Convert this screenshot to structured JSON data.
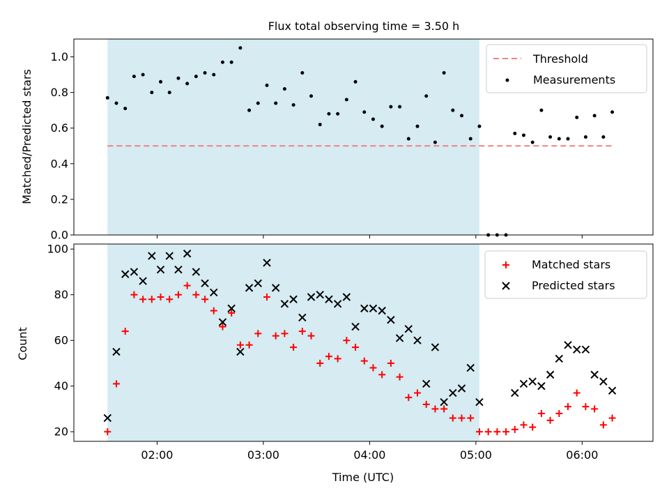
{
  "title": "Flux total observing time = 3.50 h",
  "colors": {
    "threshold": "#f08080",
    "measurement": "#000000",
    "matched": "#ff0000",
    "predicted": "#000000",
    "shade": "#add8e6"
  },
  "chart_data": [
    {
      "type": "scatter",
      "panel": "top",
      "ylabel": "Matched/Predicted stars",
      "ylim": [
        0.0,
        1.1
      ],
      "xlim": [
        "01:13",
        "06:40"
      ],
      "yticks": [
        0.0,
        0.2,
        0.4,
        0.6,
        0.8,
        1.0
      ],
      "ytick_labels": [
        "0.0",
        "0.2",
        "0.4",
        "0.6",
        "0.8",
        "1.0"
      ],
      "shaded_span": [
        "01:32",
        "05:02"
      ],
      "legend_position": "top-right",
      "legend": [
        "Threshold",
        "Measurements"
      ],
      "threshold": {
        "name": "Threshold",
        "value": 0.5,
        "x": [
          "01:32",
          "06:17"
        ],
        "style": "dashed"
      },
      "series": [
        {
          "name": "Measurements",
          "x": [
            "01:32",
            "01:37",
            "01:42",
            "01:47",
            "01:52",
            "01:57",
            "02:02",
            "02:07",
            "02:12",
            "02:17",
            "02:22",
            "02:27",
            "02:32",
            "02:37",
            "02:42",
            "02:47",
            "02:52",
            "02:57",
            "03:02",
            "03:07",
            "03:12",
            "03:17",
            "03:22",
            "03:27",
            "03:32",
            "03:37",
            "03:42",
            "03:47",
            "03:52",
            "03:57",
            "04:02",
            "04:07",
            "04:12",
            "04:17",
            "04:22",
            "04:27",
            "04:32",
            "04:37",
            "04:42",
            "04:47",
            "04:52",
            "04:57",
            "05:02",
            "05:07",
            "05:12",
            "05:17",
            "05:22",
            "05:27",
            "05:32",
            "05:37",
            "05:42",
            "05:47",
            "05:52",
            "05:57",
            "06:02",
            "06:07",
            "06:12",
            "06:17"
          ],
          "y": [
            0.77,
            0.74,
            0.71,
            0.89,
            0.9,
            0.8,
            0.86,
            0.8,
            0.88,
            0.85,
            0.89,
            0.91,
            0.9,
            0.97,
            0.97,
            1.05,
            0.7,
            0.74,
            0.84,
            0.74,
            0.82,
            0.73,
            0.91,
            0.78,
            0.62,
            0.68,
            0.68,
            0.76,
            0.86,
            0.69,
            0.65,
            0.61,
            0.72,
            0.72,
            0.54,
            0.61,
            0.78,
            0.52,
            0.91,
            0.7,
            0.67,
            0.54,
            0.61,
            0.0,
            0.0,
            0.0,
            0.57,
            0.56,
            0.52,
            0.7,
            0.55,
            0.54,
            0.54,
            0.66,
            0.55,
            0.67,
            0.55,
            0.69
          ]
        }
      ]
    },
    {
      "type": "scatter",
      "panel": "bottom",
      "xlabel": "Time (UTC)",
      "ylabel": "Count",
      "ylim": [
        15.8,
        102.2
      ],
      "xlim": [
        "01:13",
        "06:40"
      ],
      "xticks": [
        "02:00",
        "03:00",
        "04:00",
        "05:00",
        "06:00"
      ],
      "yticks": [
        20,
        40,
        60,
        80,
        100
      ],
      "ytick_labels": [
        "20",
        "40",
        "60",
        "80",
        "100"
      ],
      "shaded_span": [
        "01:32",
        "05:02"
      ],
      "legend_position": "top-right",
      "legend": [
        "Matched stars",
        "Predicted stars"
      ],
      "x": [
        "01:32",
        "01:37",
        "01:42",
        "01:47",
        "01:52",
        "01:57",
        "02:02",
        "02:07",
        "02:12",
        "02:17",
        "02:22",
        "02:27",
        "02:32",
        "02:37",
        "02:42",
        "02:47",
        "02:52",
        "02:57",
        "03:02",
        "03:07",
        "03:12",
        "03:17",
        "03:22",
        "03:27",
        "03:32",
        "03:37",
        "03:42",
        "03:47",
        "03:52",
        "03:57",
        "04:02",
        "04:07",
        "04:12",
        "04:17",
        "04:22",
        "04:27",
        "04:32",
        "04:37",
        "04:42",
        "04:47",
        "04:52",
        "04:57",
        "05:02",
        "05:07",
        "05:12",
        "05:17",
        "05:22",
        "05:27",
        "05:32",
        "05:37",
        "05:42",
        "05:47",
        "05:52",
        "05:57",
        "06:02",
        "06:07",
        "06:12",
        "06:17"
      ],
      "series": [
        {
          "name": "Matched stars",
          "marker": "plus",
          "values": [
            20,
            41,
            64,
            80,
            78,
            78,
            79,
            78,
            80,
            84,
            80,
            78,
            73,
            66,
            72,
            58,
            58,
            63,
            79,
            62,
            63,
            57,
            64,
            62,
            50,
            53,
            52,
            60,
            57,
            51,
            48,
            45,
            50,
            44,
            35,
            37,
            32,
            30,
            30,
            26,
            26,
            26,
            20,
            20,
            20,
            20,
            21,
            23,
            22,
            28,
            25,
            28,
            31,
            37,
            31,
            30,
            23,
            26
          ]
        },
        {
          "name": "Predicted stars",
          "marker": "x",
          "values": [
            26,
            55,
            89,
            90,
            86,
            97,
            91,
            97,
            91,
            98,
            90,
            85,
            81,
            68,
            74,
            55,
            83,
            85,
            94,
            83,
            76,
            78,
            70,
            79,
            80,
            78,
            76,
            79,
            66,
            74,
            74,
            73,
            69,
            61,
            65,
            60,
            41,
            57,
            33,
            37,
            39,
            48,
            33,
            null,
            null,
            null,
            37,
            41,
            42,
            40,
            45,
            52,
            58,
            56,
            56,
            45,
            42,
            38
          ]
        }
      ]
    }
  ]
}
